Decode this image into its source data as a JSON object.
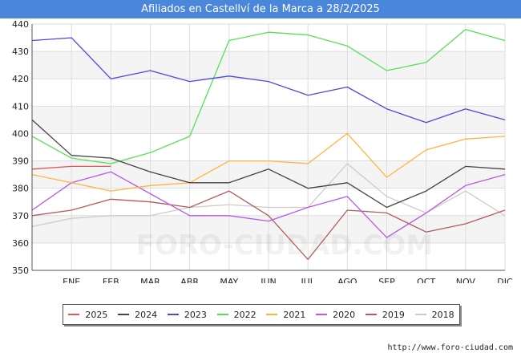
{
  "title": "Afiliados en Castellví de la Marca a 28/2/2025",
  "source_url": "http://www.foro-ciudad.com",
  "watermark": "FORO-CIUDAD.COM",
  "chart_data": {
    "type": "line",
    "title": "Afiliados en Castellví de la Marca a 28/2/2025",
    "x": [
      "",
      "ENE",
      "FEB",
      "MAR",
      "ABR",
      "MAY",
      "JUN",
      "JUL",
      "AGO",
      "SEP",
      "OCT",
      "NOV",
      "DIC"
    ],
    "ylim": [
      350,
      440
    ],
    "yticks": [
      350,
      360,
      370,
      380,
      390,
      400,
      410,
      420,
      430,
      440
    ],
    "grid": true,
    "legend_position": "bottom",
    "series": [
      {
        "name": "2025",
        "color": "#e05555",
        "values": [
          387,
          388,
          388,
          null,
          null,
          null,
          null,
          null,
          null,
          null,
          null,
          null,
          null
        ]
      },
      {
        "name": "2024",
        "color": "#444444",
        "values": [
          405,
          392,
          391,
          386,
          382,
          382,
          387,
          380,
          382,
          373,
          379,
          388,
          387
        ]
      },
      {
        "name": "2023",
        "color": "#4b4bdb",
        "values": [
          434,
          435,
          420,
          423,
          419,
          421,
          419,
          414,
          417,
          409,
          404,
          409,
          405
        ]
      },
      {
        "name": "2022",
        "color": "#55e055",
        "values": [
          399,
          391,
          389,
          393,
          399,
          434,
          437,
          436,
          432,
          423,
          426,
          438,
          434
        ]
      },
      {
        "name": "2021",
        "color": "#ffb43c",
        "values": [
          385,
          382,
          379,
          381,
          382,
          390,
          390,
          389,
          400,
          384,
          394,
          398,
          399
        ]
      },
      {
        "name": "2020",
        "color": "#b55ae6",
        "values": [
          372,
          382,
          386,
          378,
          370,
          370,
          368,
          373,
          377,
          362,
          371,
          381,
          385
        ]
      },
      {
        "name": "2019",
        "color": "#b45a5a",
        "values": [
          370,
          372,
          376,
          375,
          373,
          379,
          370,
          354,
          372,
          371,
          364,
          367,
          372
        ]
      },
      {
        "name": "2018",
        "color": "#cccccc",
        "values": [
          366,
          369,
          370,
          370,
          373,
          374,
          373,
          373,
          389,
          377,
          371,
          379,
          370
        ]
      }
    ]
  }
}
